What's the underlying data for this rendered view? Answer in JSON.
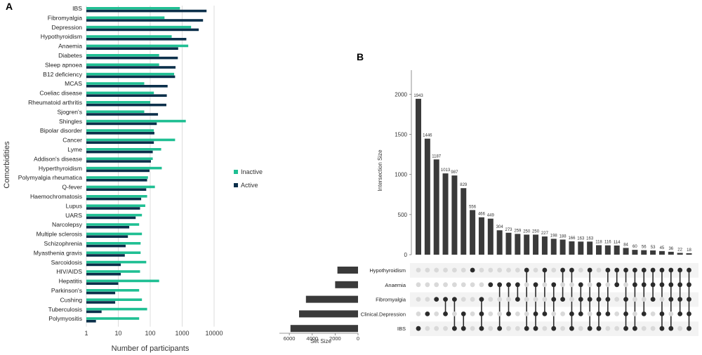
{
  "panel_a_label": "A",
  "panel_b_label": "B",
  "colors": {
    "inactive": "#1fbf93",
    "active": "#0b2f4a",
    "upset_bar": "#3a3a3a",
    "dot_off": "#d9d9d9",
    "dot_on": "#2b2b2b"
  },
  "chart_data": [
    {
      "type": "bar",
      "orientation": "horizontal",
      "xscale": "log",
      "xlim": [
        1,
        10000
      ],
      "xticks": [
        "1",
        "10",
        "100",
        "1000",
        "10000"
      ],
      "xlabel": "Number of participants",
      "ylabel": "Comorbidities",
      "legend_position": "right",
      "categories": [
        "IBS",
        "Fibromyalgia",
        "Depression",
        "Hypothyroidism",
        "Anaemia",
        "Diabetes",
        "Sleep apnoea",
        "B12 deficiency",
        "MCAS",
        "Coeliac disease",
        "Rheumatoid arthritis",
        "Sjogren's",
        "Shingles",
        "Bipolar disorder",
        "Cancer",
        "Lyme",
        "Addison's disease",
        "Hyperthyroidism",
        "Polymyalgia rheumatica",
        "Q-fever",
        "Haemochromatosis",
        "Lupus",
        "UARS",
        "Narcolepsy",
        "Multiple sclerosis",
        "Schizophrenia",
        "Myasthenia gravis",
        "Sarcoidosis",
        "HIV/AIDS",
        "Hepatitis",
        "Parkinson's",
        "Cushing",
        "Tuberculosis",
        "Polymyositis"
      ],
      "series": [
        {
          "name": "Inactive",
          "values": [
            850,
            280,
            1900,
            470,
            1550,
            190,
            190,
            560,
            65,
            130,
            100,
            65,
            1300,
            130,
            600,
            220,
            120,
            230,
            85,
            140,
            80,
            70,
            55,
            45,
            55,
            50,
            50,
            75,
            48,
            190,
            45,
            55,
            80,
            45
          ]
        },
        {
          "name": "Active",
          "values": [
            5800,
            4500,
            3300,
            1350,
            750,
            730,
            620,
            600,
            350,
            330,
            320,
            175,
            160,
            135,
            130,
            120,
            105,
            95,
            80,
            75,
            52,
            48,
            35,
            22,
            20,
            17,
            16,
            12,
            12,
            10,
            8,
            8,
            3,
            2
          ]
        }
      ]
    },
    {
      "type": "bar",
      "subtype": "upset",
      "ylabel": "Intersection Size",
      "ylim": [
        0,
        2300
      ],
      "yticks": [
        "0",
        "500",
        "1000",
        "1500",
        "2000"
      ],
      "intersection_sizes": [
        1943,
        1446,
        1187,
        1013,
        987,
        829,
        556,
        466,
        449,
        304,
        273,
        259,
        250,
        250,
        227,
        198,
        188,
        166,
        163,
        163,
        118,
        116,
        114,
        84,
        60,
        56,
        53,
        45,
        36,
        22,
        18
      ],
      "sets": [
        "Hypothyroidism",
        "Anaemia",
        "Fibromyalgia",
        "Clinical.Depression",
        "IBS"
      ],
      "set_size_label": "Set Size",
      "set_size_ticks": [
        "6000",
        "4000",
        "2000",
        "0"
      ],
      "set_size_max": 6500,
      "set_sizes": [
        1800,
        2000,
        4550,
        5150,
        5900
      ],
      "intersection_membership": [
        [
          "IBS"
        ],
        [
          "Clinical.Depression"
        ],
        [
          "Fibromyalgia"
        ],
        [
          "Fibromyalgia",
          "Clinical.Depression"
        ],
        [
          "Fibromyalgia",
          "IBS"
        ],
        [
          "Clinical.Depression",
          "IBS"
        ],
        [
          "Hypothyroidism"
        ],
        [
          "Fibromyalgia",
          "Clinical.Depression",
          "IBS"
        ],
        [
          "Anaemia"
        ],
        [
          "Anaemia",
          "IBS"
        ],
        [
          "Anaemia",
          "Clinical.Depression"
        ],
        [
          "Anaemia",
          "Fibromyalgia"
        ],
        [
          "Hypothyroidism",
          "IBS"
        ],
        [
          "Anaemia",
          "Clinical.Depression",
          "IBS"
        ],
        [
          "Hypothyroidism",
          "Clinical.Depression"
        ],
        [
          "Anaemia",
          "Fibromyalgia",
          "IBS"
        ],
        [
          "Hypothyroidism",
          "Fibromyalgia"
        ],
        [
          "Hypothyroidism",
          "Clinical.Depression",
          "IBS"
        ],
        [
          "Anaemia",
          "Fibromyalgia",
          "Clinical.Depression"
        ],
        [
          "Hypothyroidism",
          "Fibromyalgia",
          "IBS"
        ],
        [
          "Anaemia",
          "Fibromyalgia",
          "Clinical.Depression",
          "IBS"
        ],
        [
          "Hypothyroidism",
          "Fibromyalgia",
          "Clinical.Depression"
        ],
        [
          "Hypothyroidism",
          "Anaemia"
        ],
        [
          "Hypothyroidism",
          "Fibromyalgia",
          "Clinical.Depression",
          "IBS"
        ],
        [
          "Hypothyroidism",
          "Anaemia",
          "IBS"
        ],
        [
          "Hypothyroidism",
          "Anaemia",
          "Clinical.Depression"
        ],
        [
          "Hypothyroidism",
          "Anaemia",
          "Fibromyalgia"
        ],
        [
          "Hypothyroidism",
          "Anaemia",
          "Clinical.Depression",
          "IBS"
        ],
        [
          "Hypothyroidism",
          "Anaemia",
          "Fibromyalgia",
          "IBS"
        ],
        [
          "Hypothyroidism",
          "Anaemia",
          "Fibromyalgia",
          "Clinical.Depression"
        ],
        [
          "Hypothyroidism",
          "Anaemia",
          "Fibromyalgia",
          "Clinical.Depression",
          "IBS"
        ]
      ]
    }
  ]
}
